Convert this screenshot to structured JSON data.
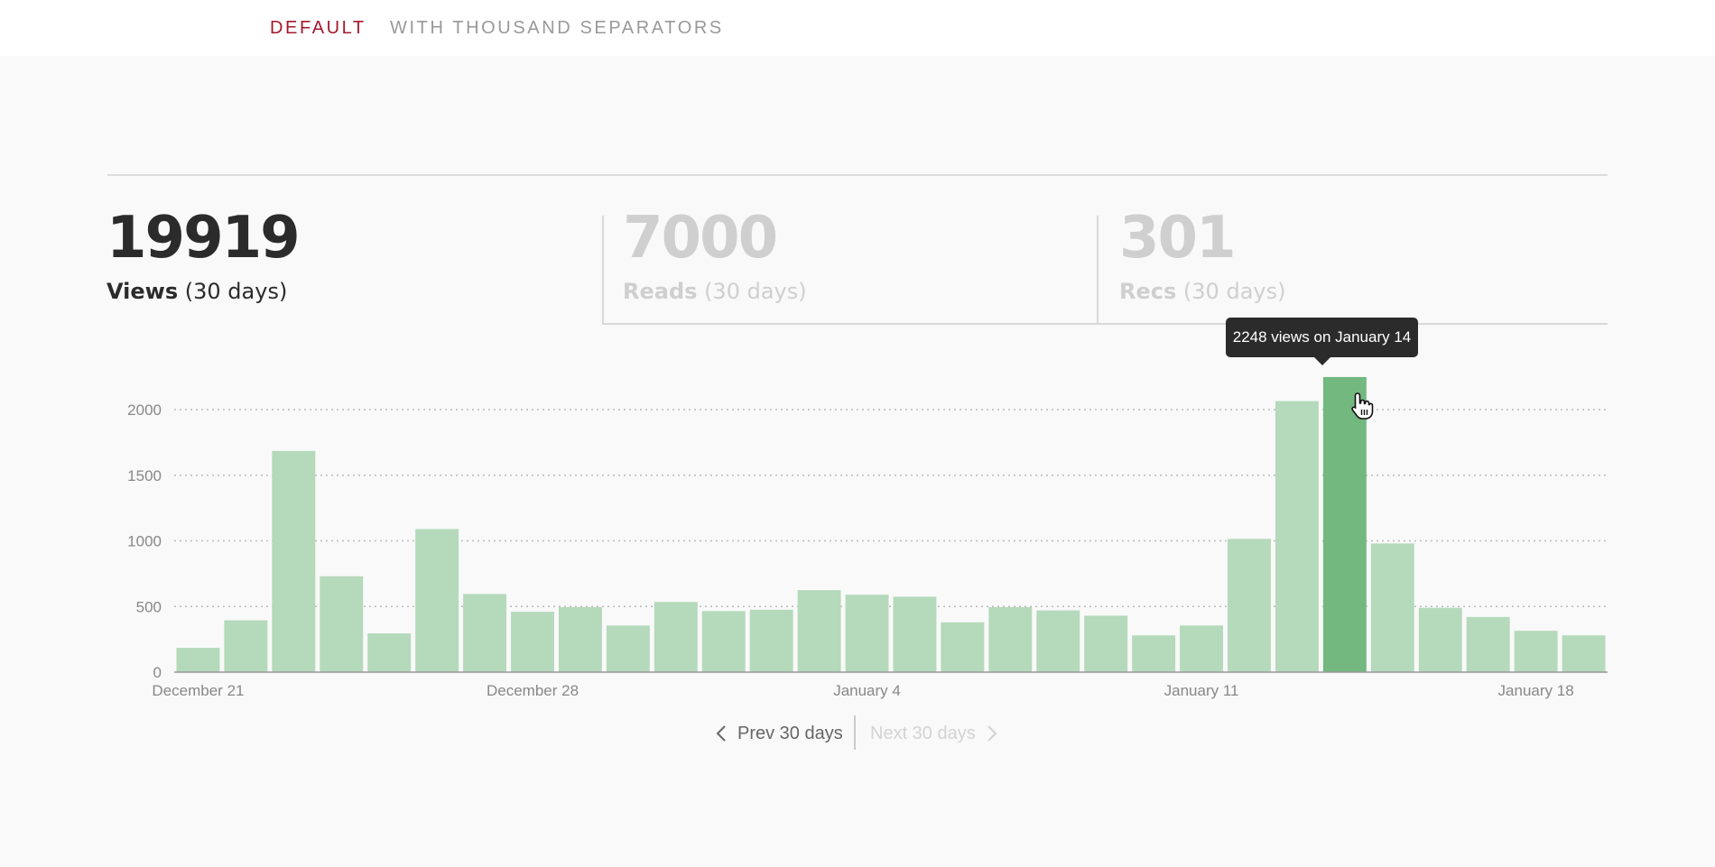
{
  "tabs": [
    {
      "label": "DEFAULT",
      "active": true
    },
    {
      "label": "WITH THOUSAND SEPARATORS",
      "active": false
    }
  ],
  "stats": {
    "views": {
      "value": "19919",
      "name": "Views",
      "period": "(30 days)"
    },
    "reads": {
      "value": "7000",
      "name": "Reads",
      "period": "(30 days)"
    },
    "recs": {
      "value": "301",
      "name": "Recs",
      "period": "(30 days)"
    }
  },
  "colors": {
    "accent": "#a3192d",
    "bar": "#b5d9bb",
    "bar_hover": "#73b87f",
    "tooltip_bg": "#2b2b2b"
  },
  "tooltip": {
    "text": "2248 views on January 14"
  },
  "pager": {
    "prev_label": "Prev 30 days",
    "next_label": "Next 30 days",
    "next_enabled": false
  },
  "chart_data": {
    "type": "bar",
    "title": "",
    "xlabel": "",
    "ylabel": "",
    "ylim": [
      0,
      2250
    ],
    "yticks": [
      0,
      500,
      1000,
      1500,
      2000
    ],
    "grid": "horizontal dotted",
    "categories": [
      "December 21",
      "December 22",
      "December 23",
      "December 24",
      "December 25",
      "December 26",
      "December 27",
      "December 28",
      "December 29",
      "December 30",
      "December 31",
      "January 1",
      "January 2",
      "January 3",
      "January 4",
      "January 5",
      "January 6",
      "January 7",
      "January 8",
      "January 9",
      "January 10",
      "January 11",
      "January 12",
      "January 13",
      "January 14",
      "January 15",
      "January 16",
      "January 17",
      "January 18",
      "January 19"
    ],
    "x_tick_labels": [
      "December 21",
      "December 28",
      "January 4",
      "January 11",
      "January 18"
    ],
    "x_tick_indices": [
      0,
      7,
      14,
      21,
      28
    ],
    "series": [
      {
        "values": [
          185,
          395,
          1685,
          730,
          295,
          1090,
          595,
          460,
          495,
          355,
          535,
          465,
          475,
          625,
          590,
          575,
          380,
          495,
          470,
          430,
          280,
          355,
          1015,
          2065,
          2248,
          980,
          490,
          420,
          315,
          280
        ]
      }
    ],
    "highlight_index": 24
  }
}
